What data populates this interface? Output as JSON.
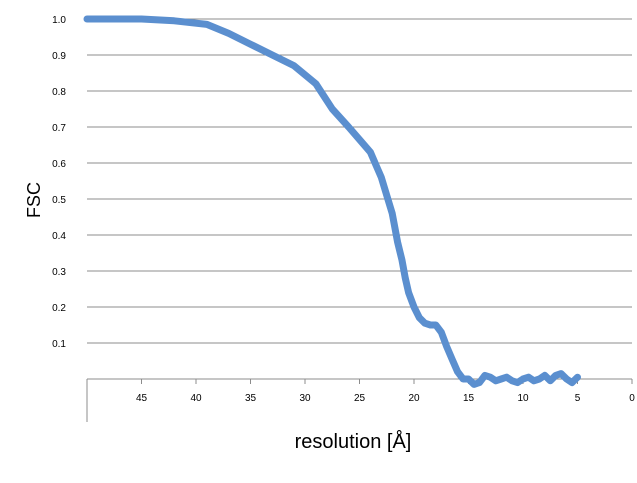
{
  "chart_data": {
    "type": "line",
    "title": "",
    "xlabel": "resolution [Å]",
    "ylabel": "FSC",
    "x_reversed": true,
    "xlim": [
      0,
      50
    ],
    "ylim": [
      0,
      1.0
    ],
    "y_ticks": [
      "0.1",
      "0.2",
      "0.3",
      "0.4",
      "0.5",
      "0.6",
      "0.7",
      "0.8",
      "0.9",
      "1.0"
    ],
    "x_ticks": [
      "45",
      "40",
      "35",
      "30",
      "25",
      "20",
      "15",
      "10",
      "5",
      "0"
    ],
    "grid": true,
    "line_color": "#5b8fcf",
    "series": [
      {
        "x": [
          50,
          45,
          42,
          39,
          37,
          35,
          33,
          31,
          29,
          27.5,
          26,
          25,
          24,
          23,
          22,
          21.5,
          21.1,
          20.8,
          20.5,
          20,
          19.5,
          19,
          18.5,
          18,
          17.5,
          17,
          16.5,
          16,
          15.5,
          15,
          14.5,
          14,
          13.5,
          13,
          12.5,
          12,
          11.5,
          11,
          10.5,
          10,
          9.5,
          9,
          8.5,
          8,
          7.5,
          7,
          6.5,
          6,
          5.5,
          5
        ],
        "y": [
          1.0,
          1.0,
          0.995,
          0.985,
          0.96,
          0.93,
          0.9,
          0.87,
          0.82,
          0.75,
          0.7,
          0.665,
          0.63,
          0.56,
          0.46,
          0.38,
          0.33,
          0.28,
          0.24,
          0.2,
          0.17,
          0.155,
          0.15,
          0.15,
          0.13,
          0.09,
          0.055,
          0.02,
          0.0,
          0.0,
          -0.015,
          -0.01,
          0.01,
          0.005,
          -0.005,
          0.0,
          0.005,
          -0.005,
          -0.01,
          0.0,
          0.005,
          -0.005,
          0.0,
          0.01,
          -0.005,
          0.01,
          0.015,
          0.0,
          -0.01,
          0.005
        ]
      }
    ]
  }
}
